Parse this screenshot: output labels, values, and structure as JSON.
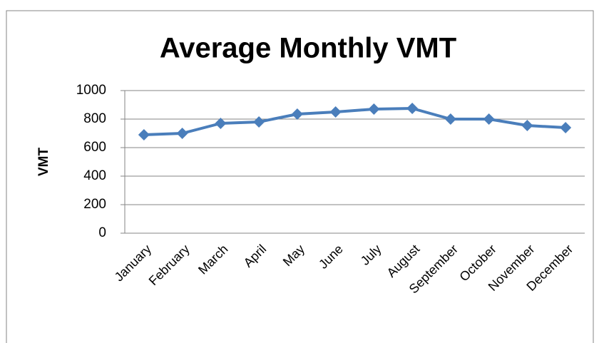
{
  "chart_data": {
    "type": "line",
    "title": "Average Monthly VMT",
    "y_label": "VMT",
    "categories": [
      "January",
      "February",
      "March",
      "April",
      "May",
      "June",
      "July",
      "August",
      "September",
      "October",
      "November",
      "December"
    ],
    "series": [
      {
        "name": "VMT",
        "color": "#4a7ebb",
        "values": [
          690,
          700,
          770,
          780,
          835,
          850,
          870,
          875,
          800,
          800,
          755,
          740
        ]
      }
    ],
    "ylim": [
      0,
      1000
    ],
    "yticks": [
      0,
      200,
      400,
      600,
      800,
      1000
    ],
    "grid": true
  }
}
